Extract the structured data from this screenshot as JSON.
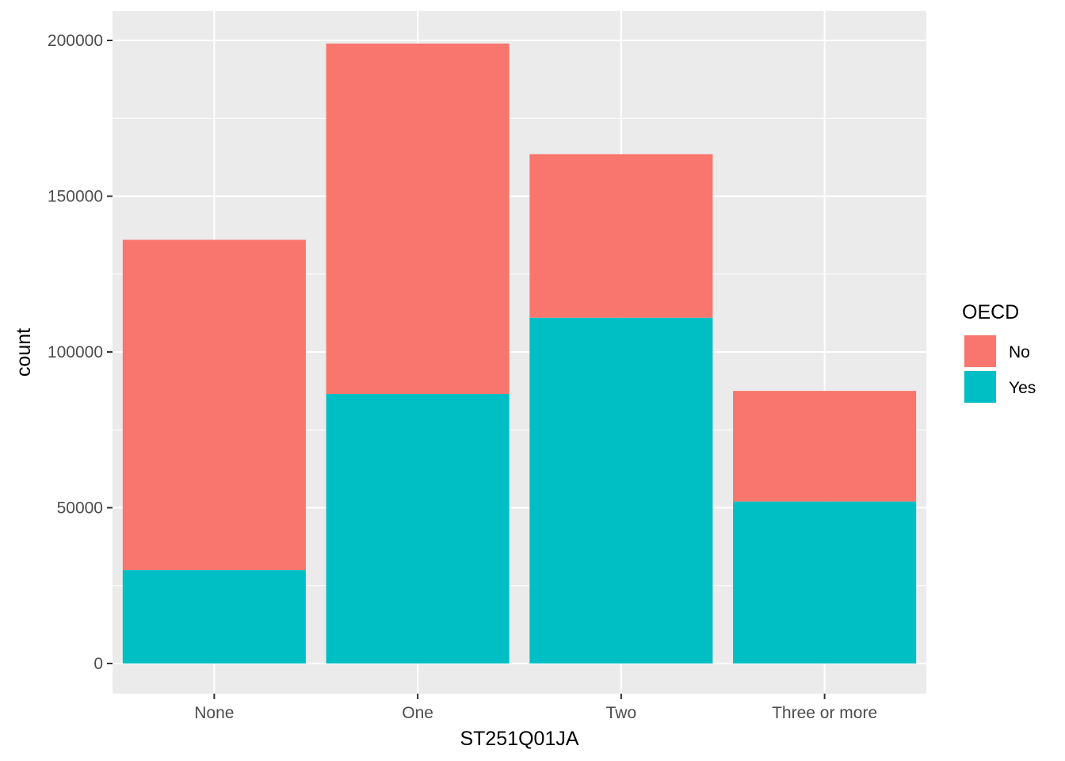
{
  "chart_data": {
    "type": "bar",
    "stacked": true,
    "categories": [
      "None",
      "One",
      "Two",
      "Three or more"
    ],
    "series": [
      {
        "name": "No",
        "color": "#F8766D",
        "values": [
          106000,
          112500,
          52500,
          35500
        ]
      },
      {
        "name": "Yes",
        "color": "#00BFC4",
        "values": [
          30000,
          86500,
          111000,
          52000
        ]
      }
    ],
    "totals": [
      136000,
      199000,
      163500,
      87500
    ],
    "xlabel": "ST251Q01JA",
    "ylabel": "count",
    "ylim": [
      0,
      210000
    ],
    "yticks": [
      0,
      50000,
      100000,
      150000,
      200000
    ],
    "ytick_labels": [
      "0",
      "50000",
      "100000",
      "150000",
      "200000"
    ],
    "grid": true,
    "legend": {
      "title": "OECD",
      "position": "right"
    }
  }
}
